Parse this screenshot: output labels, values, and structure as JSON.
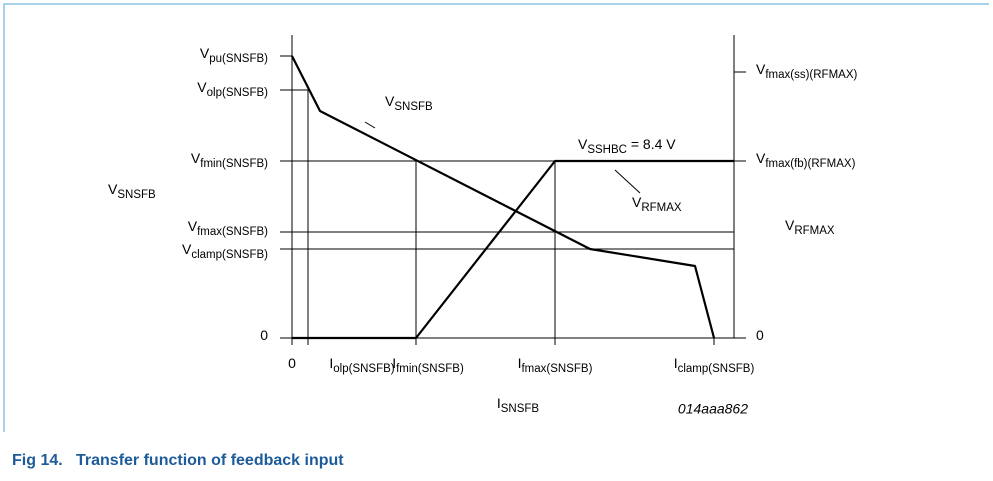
{
  "diagram": {
    "left_labels": [
      {
        "main": "V",
        "sub": "pu(SNSFB)"
      },
      {
        "main": "V",
        "sub": "olp(SNSFB)"
      },
      {
        "main": "V",
        "sub": "fmin(SNSFB)"
      },
      {
        "main": "V",
        "sub": "fmax(SNSFB)"
      },
      {
        "main": "V",
        "sub": "clamp(SNSFB)"
      },
      {
        "main": "0"
      }
    ],
    "left_axis_title": {
      "main": "V",
      "sub": "SNSFB"
    },
    "right_labels": [
      {
        "main": "V",
        "sub": "fmax(ss)(RFMAX)"
      },
      {
        "main": "V",
        "sub": "fmax(fb)(RFMAX)"
      },
      {
        "main": "0"
      }
    ],
    "right_axis_title": {
      "main": "V",
      "sub": "RFMAX"
    },
    "bottom_labels": [
      {
        "main": "0"
      },
      {
        "main": "I",
        "sub": "olp(SNSFB)"
      },
      {
        "main": "I",
        "sub": "fmin(SNSFB)"
      },
      {
        "main": "I",
        "sub": "fmax(SNSFB)"
      },
      {
        "main": "I",
        "sub": "clamp(SNSFB)"
      }
    ],
    "bottom_axis_title": {
      "main": "I",
      "sub": "SNSFB"
    },
    "curve_labels": [
      {
        "main": "V",
        "sub": "SNSFB"
      },
      {
        "main": "V",
        "sub": "RFMAX"
      },
      {
        "main": "V",
        "sub": "SSHBC",
        "rest": " = 8.4 V"
      }
    ],
    "code": "014aaa862",
    "caption": "Fig 14.   Transfer function of feedback input"
  }
}
